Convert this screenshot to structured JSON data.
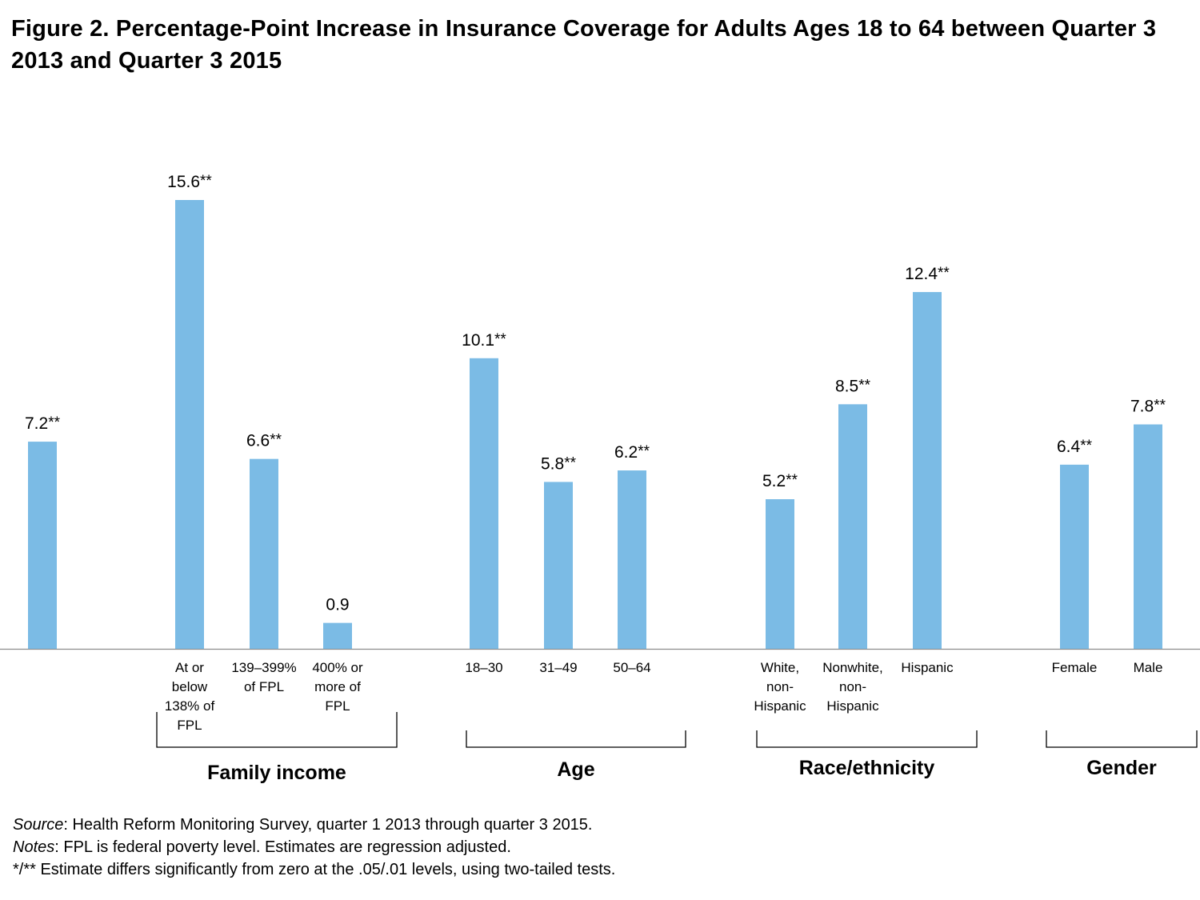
{
  "title": "Figure 2. Percentage-Point Increase in Insurance Coverage for Adults Ages 18 to 64 between Quarter 3 2013 and Quarter 3 2015",
  "chart_data": {
    "type": "bar",
    "bar_color": "#7bbbe5",
    "categories": [
      "",
      "At or below 138% of FPL",
      "139–399% of FPL",
      "400% or more of FPL",
      "18–30",
      "31–49",
      "50–64",
      "White, non-Hispanic",
      "Nonwhite, non-Hispanic",
      "Hispanic",
      "Female",
      "Male"
    ],
    "values": [
      7.2,
      15.6,
      6.6,
      0.9,
      10.1,
      5.8,
      6.2,
      5.2,
      8.5,
      12.4,
      6.4,
      7.8
    ],
    "value_labels": [
      "7.2",
      "15.6",
      "6.6",
      "0.9",
      "10.1",
      "5.8",
      "6.2",
      "5.2",
      "8.5",
      "12.4",
      "6.4",
      "7.8"
    ],
    "significance": [
      "**",
      "**",
      "**",
      "",
      "**",
      "**",
      "**",
      "**",
      "**",
      "**",
      "**",
      "**"
    ],
    "category_label_lines": [
      [],
      [
        "At or",
        "below",
        "138% of",
        "FPL"
      ],
      [
        "139–399%",
        "of FPL"
      ],
      [
        "400% or",
        "more of",
        "FPL"
      ],
      [
        "18–30"
      ],
      [
        "31–49"
      ],
      [
        "50–64"
      ],
      [
        "White,",
        "non-",
        "Hispanic"
      ],
      [
        "Nonwhite,",
        "non-",
        "Hispanic"
      ],
      [
        "Hispanic"
      ],
      [
        "Female"
      ],
      [
        "Male"
      ]
    ],
    "groups": [
      {
        "name": "Family income",
        "members": [
          1,
          2,
          3
        ]
      },
      {
        "name": "Age",
        "members": [
          4,
          5,
          6
        ]
      },
      {
        "name": "Race/ethnicity",
        "members": [
          7,
          8,
          9
        ]
      },
      {
        "name": "Gender",
        "members": [
          10,
          11
        ]
      }
    ],
    "ylim": [
      0,
      15.6
    ],
    "grid": false
  },
  "notes": {
    "source_label": "Source",
    "source_text": ": Health Reform Monitoring Survey, quarter 1 2013 through quarter 3 2015.",
    "notes_label": "Notes",
    "notes_text": ": FPL is federal poverty level. Estimates are regression adjusted.",
    "significance_text": "*/** Estimate differs significantly from zero at the .05/.01 levels, using two-tailed tests."
  }
}
